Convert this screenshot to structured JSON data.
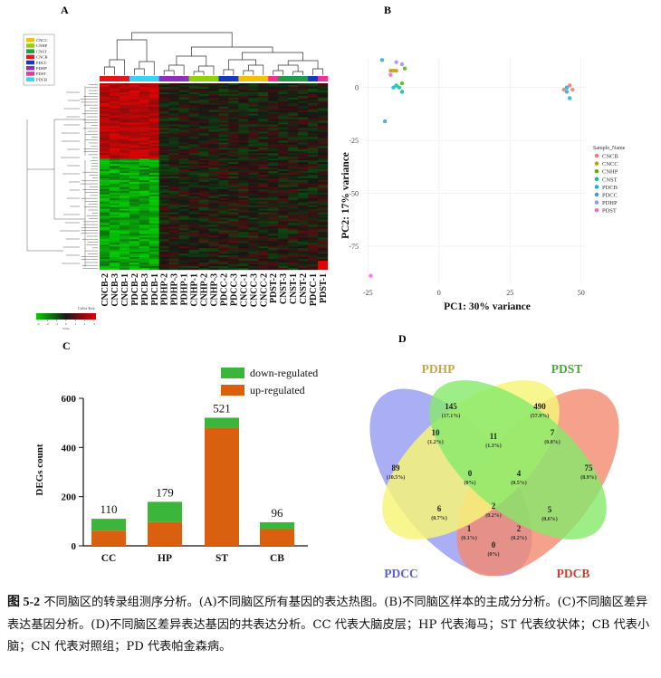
{
  "panels": {
    "A": "A",
    "B": "B",
    "C": "C",
    "D": "D"
  },
  "heatmap": {
    "legend_items": [
      {
        "label": "CNCC",
        "color": "#f2c200"
      },
      {
        "label": "CNHP",
        "color": "#8fd400"
      },
      {
        "label": "CNST",
        "color": "#1d9c4a"
      },
      {
        "label": "CNCB",
        "color": "#e4171b"
      },
      {
        "label": "PDCC",
        "color": "#1538c2"
      },
      {
        "label": "PDHP",
        "color": "#8d2fbe"
      },
      {
        "label": "PDST",
        "color": "#f0319a"
      },
      {
        "label": "PDCB",
        "color": "#36d6f2"
      }
    ],
    "color_key_title": "Color Key",
    "color_key_ticks": [
      "-3",
      "-2",
      "-1",
      "0",
      "1",
      "2",
      "3"
    ],
    "color_key_axis": "Value",
    "samples": [
      "CNCB-2",
      "CNCB-3",
      "CNCB-1",
      "PDCB-2",
      "PDCB-3",
      "PDCB-1",
      "PDHP-2",
      "PDHP-3",
      "PDHP-1",
      "CNHP-1",
      "CNHP-2",
      "CNHP-3",
      "PDCC-2",
      "PDCC-3",
      "CNCC-1",
      "CNCC-3",
      "CNCC-2",
      "PDST-2",
      "CNST-3",
      "CNST-1",
      "CNST-2",
      "PDCC-1",
      "PDST-1"
    ],
    "sample_bar_colors": [
      "#e4171b",
      "#e4171b",
      "#e4171b",
      "#36d6f2",
      "#36d6f2",
      "#36d6f2",
      "#8d2fbe",
      "#8d2fbe",
      "#8d2fbe",
      "#8fd400",
      "#8fd400",
      "#8fd400",
      "#1538c2",
      "#1538c2",
      "#f2c200",
      "#f2c200",
      "#f2c200",
      "#f0319a",
      "#1d9c4a",
      "#1d9c4a",
      "#1d9c4a",
      "#1538c2",
      "#f0319a"
    ]
  },
  "pca": {
    "xlabel": "PC1: 30% variance",
    "ylabel": "PC2: 17%  variance",
    "xticks": [
      "-25",
      "0",
      "25",
      "50"
    ],
    "yticks": [
      "0",
      "-25",
      "-50",
      "-75"
    ],
    "legend_title": "Sample_Name",
    "legend_items": [
      {
        "label": "CNCB",
        "color": "#f8766d",
        "shape": "circle"
      },
      {
        "label": "CNCC",
        "color": "#c49a00",
        "shape": "triangle"
      },
      {
        "label": "CNHP",
        "color": "#53b400",
        "shape": "square"
      },
      {
        "label": "CNST",
        "color": "#00c094",
        "shape": "plus"
      },
      {
        "label": "PDCB",
        "color": "#00b6eb",
        "shape": "square-x"
      },
      {
        "label": "PDCC",
        "color": "#29a3e0",
        "shape": "star"
      },
      {
        "label": "PDHP",
        "color": "#a58aff",
        "shape": "diamond"
      },
      {
        "label": "PDST",
        "color": "#fb61d7",
        "shape": "triangle-open"
      }
    ]
  },
  "chart_data": {
    "type": "bar",
    "categories": [
      "CC",
      "HP",
      "ST",
      "CB"
    ],
    "series": [
      {
        "name": "up-regulated",
        "values": [
          62,
          97,
          480,
          68
        ],
        "color": "#d9600f"
      },
      {
        "name": "down-regulated",
        "values": [
          48,
          82,
          41,
          28
        ],
        "color": "#3cb63a"
      }
    ],
    "totals": [
      "110",
      "179",
      "521",
      "96"
    ],
    "ylabel": "DEGs count",
    "ylim": [
      0,
      600
    ],
    "yticks": [
      "0",
      "200",
      "400",
      "600"
    ],
    "legend_placement": "top-right"
  },
  "venn": {
    "sets": [
      {
        "label": "PDHP",
        "color": "#c8a93c"
      },
      {
        "label": "PDST",
        "color": "#4aa832"
      },
      {
        "label": "PDCC",
        "color": "#5a5fd0"
      },
      {
        "label": "PDCB",
        "color": "#cc3c33"
      }
    ],
    "regions": [
      {
        "count": "145",
        "pct": "(17.1%)"
      },
      {
        "count": "490",
        "pct": "(57.9%)"
      },
      {
        "count": "89",
        "pct": "(10.5%)"
      },
      {
        "count": "75",
        "pct": "(8.9%)"
      },
      {
        "count": "10",
        "pct": "(1.2%)"
      },
      {
        "count": "11",
        "pct": "(1.3%)"
      },
      {
        "count": "7",
        "pct": "(0.8%)"
      },
      {
        "count": "0",
        "pct": "(0%)"
      },
      {
        "count": "4",
        "pct": "(0.5%)"
      },
      {
        "count": "6",
        "pct": "(0.7%)"
      },
      {
        "count": "2",
        "pct": "(0.2%)"
      },
      {
        "count": "5",
        "pct": "(0.6%)"
      },
      {
        "count": "1",
        "pct": "(0.1%)"
      },
      {
        "count": "2",
        "pct": "(0.2%)"
      },
      {
        "count": "0",
        "pct": "(0%)"
      }
    ]
  },
  "caption": {
    "fig_no": "图 5-2",
    "text": " 不同脑区的转录组测序分析。(A)不同脑区所有基因的表达热图。(B)不同脑区样本的主成分分析。(C)不同脑区差异表达基因分析。(D)不同脑区差异表达基因的共表达分析。CC 代表大脑皮层；HP 代表海马；ST 代表纹状体；CB 代表小脑；CN 代表对照组；PD 代表帕金森病。"
  }
}
